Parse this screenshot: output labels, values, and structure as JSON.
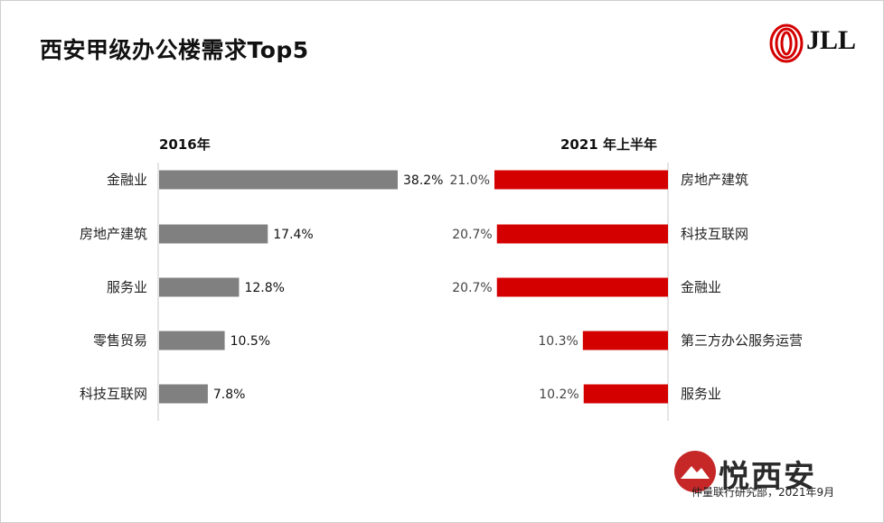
{
  "title": "西安甲级办公楼需求Top5",
  "logo": {
    "text": "JLL"
  },
  "watermark": {
    "text": "悦西安"
  },
  "source": "仲量联行研究部，2021年9月",
  "colors": {
    "left_bar": "#808080",
    "right_bar": "#d40000",
    "axis": "#c8c8c8"
  },
  "chart_data": [
    {
      "type": "bar",
      "orientation": "horizontal",
      "title": "2016年",
      "categories": [
        "金融业",
        "房地产建筑",
        "服务业",
        "零售贸易",
        "科技互联网"
      ],
      "values": [
        38.2,
        17.4,
        12.8,
        10.5,
        7.8
      ],
      "value_labels": [
        "38.2%",
        "17.4%",
        "12.8%",
        "10.5%",
        "7.8%"
      ],
      "xlim": [
        0,
        40
      ]
    },
    {
      "type": "bar",
      "orientation": "horizontal",
      "title": "2021 年上半年",
      "categories": [
        "房地产建筑",
        "科技互联网",
        "金融业",
        "第三方办公服务运营",
        "服务业"
      ],
      "values": [
        21.0,
        20.7,
        20.7,
        10.3,
        10.2
      ],
      "value_labels": [
        "21.0%",
        "20.7%",
        "20.7%",
        "10.3%",
        "10.2%"
      ],
      "xlim": [
        0,
        21.5
      ]
    }
  ]
}
